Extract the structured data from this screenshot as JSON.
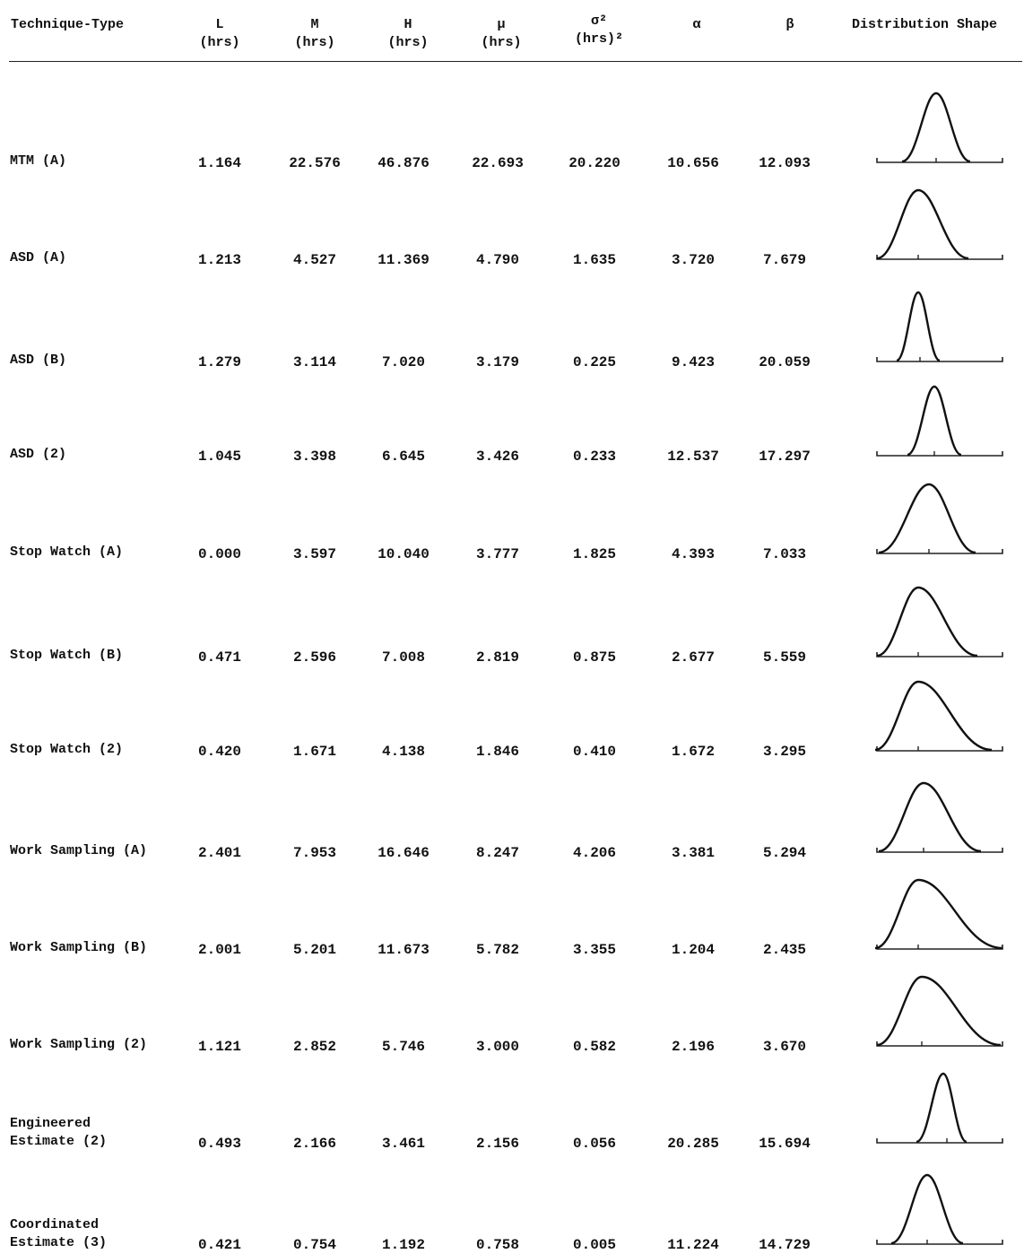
{
  "header": {
    "technique": "Technique-Type",
    "L": {
      "sym": "L",
      "unit": "(hrs)"
    },
    "M": {
      "sym": "M",
      "unit": "(hrs)"
    },
    "H": {
      "sym": "H",
      "unit": "(hrs)"
    },
    "mu": {
      "sym": "μ",
      "unit": "(hrs)"
    },
    "sigma": {
      "sym": "σ²",
      "unit": "(hrs)²"
    },
    "alpha": {
      "sym": "α"
    },
    "beta": {
      "sym": "β"
    },
    "shape": "Distribution Shape"
  },
  "rows": [
    {
      "label": "MTM (A)",
      "L": "1.164",
      "M": "22.576",
      "H": "46.876",
      "mu": "22.693",
      "sigma": "20.220",
      "alpha": "10.656",
      "beta": "12.093"
    },
    {
      "label": "ASD (A)",
      "L": "1.213",
      "M": "4.527",
      "H": "11.369",
      "mu": "4.790",
      "sigma": "1.635",
      "alpha": "3.720",
      "beta": "7.679"
    },
    {
      "label": "ASD (B)",
      "L": "1.279",
      "M": "3.114",
      "H": "7.020",
      "mu": "3.179",
      "sigma": "0.225",
      "alpha": "9.423",
      "beta": "20.059"
    },
    {
      "label": "ASD (2)",
      "L": "1.045",
      "M": "3.398",
      "H": "6.645",
      "mu": "3.426",
      "sigma": "0.233",
      "alpha": "12.537",
      "beta": "17.297"
    },
    {
      "label": "Stop Watch (A)",
      "L": "0.000",
      "M": "3.597",
      "H": "10.040",
      "mu": "3.777",
      "sigma": "1.825",
      "alpha": "4.393",
      "beta": "7.033"
    },
    {
      "label": "Stop Watch (B)",
      "L": "0.471",
      "M": "2.596",
      "H": "7.008",
      "mu": "2.819",
      "sigma": "0.875",
      "alpha": "2.677",
      "beta": "5.559"
    },
    {
      "label": "Stop Watch (2)",
      "L": "0.420",
      "M": "1.671",
      "H": "4.138",
      "mu": "1.846",
      "sigma": "0.410",
      "alpha": "1.672",
      "beta": "3.295"
    },
    {
      "label": "Work Sampling (A)",
      "L": "2.401",
      "M": "7.953",
      "H": "16.646",
      "mu": "8.247",
      "sigma": "4.206",
      "alpha": "3.381",
      "beta": "5.294"
    },
    {
      "label": "Work Sampling (B)",
      "L": "2.001",
      "M": "5.201",
      "H": "11.673",
      "mu": "5.782",
      "sigma": "3.355",
      "alpha": "1.204",
      "beta": "2.435"
    },
    {
      "label": "Work Sampling (2)",
      "L": "1.121",
      "M": "2.852",
      "H": "5.746",
      "mu": "3.000",
      "sigma": "0.582",
      "alpha": "2.196",
      "beta": "3.670"
    },
    {
      "label": "Engineered\nEstimate (2)",
      "L": "0.493",
      "M": "2.166",
      "H": "3.461",
      "mu": "2.156",
      "sigma": "0.056",
      "alpha": "20.285",
      "beta": "15.694"
    },
    {
      "label": "Coordinated\nEstimate (3)",
      "L": "0.421",
      "M": "0.754",
      "H": "1.192",
      "mu": "0.758",
      "sigma": "0.005",
      "alpha": "11.224",
      "beta": "14.729"
    }
  ]
}
